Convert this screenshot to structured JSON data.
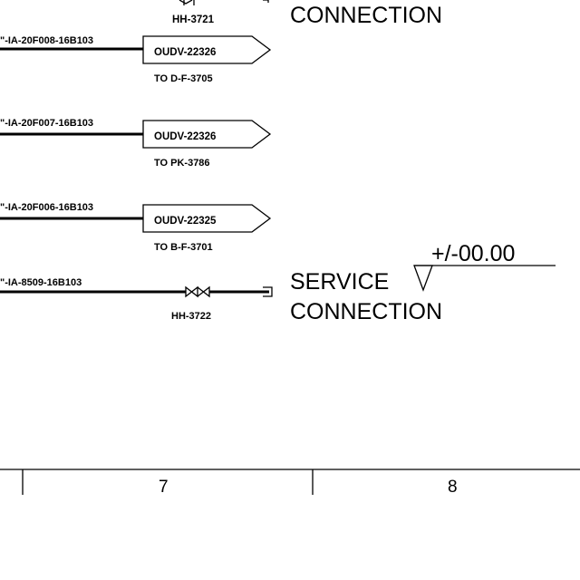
{
  "top": {
    "tag": "HH-3721",
    "connection_label": "CONNECTION"
  },
  "lines": [
    {
      "line_number": "\"-IA-20F008-16B103",
      "offpage_tag": "OUDV-22326",
      "destination": "TO D-F-3705"
    },
    {
      "line_number": "\"-IA-20F007-16B103",
      "offpage_tag": "OUDV-22326",
      "destination": "TO PK-3786"
    },
    {
      "line_number": "\"-IA-20F006-16B103",
      "offpage_tag": "OUDV-22325",
      "destination": "TO B-F-3701"
    }
  ],
  "service": {
    "line_number": "\"-IA-8509-16B103",
    "valve_tag": "HH-3722",
    "label_line1": "SERVICE",
    "label_line2": "CONNECTION"
  },
  "elevation": {
    "value": "+/-00.00"
  },
  "border": {
    "columns": [
      "7",
      "8"
    ]
  }
}
